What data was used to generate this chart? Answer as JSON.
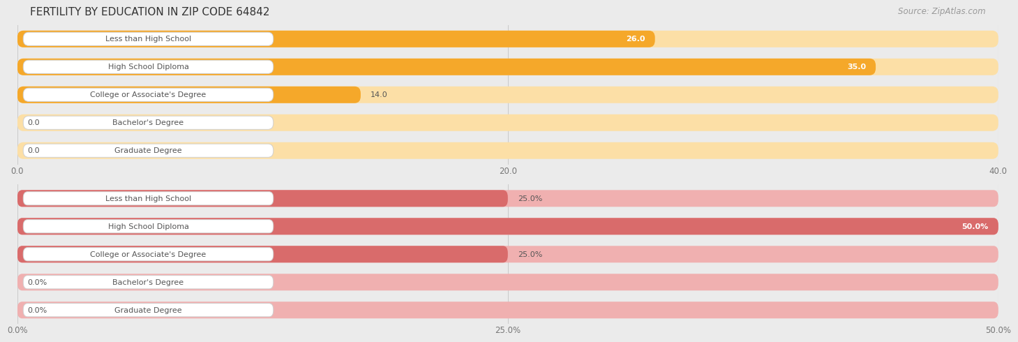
{
  "title": "FERTILITY BY EDUCATION IN ZIP CODE 64842",
  "source": "Source: ZipAtlas.com",
  "background_color": "#ebebeb",
  "top_chart": {
    "categories": [
      "Less than High School",
      "High School Diploma",
      "College or Associate's Degree",
      "Bachelor's Degree",
      "Graduate Degree"
    ],
    "values": [
      26.0,
      35.0,
      14.0,
      0.0,
      0.0
    ],
    "bar_color": "#f5a82a",
    "bar_bg_color": "#fcdfa6",
    "xlim": [
      0,
      40
    ],
    "xticks": [
      0.0,
      20.0,
      40.0
    ],
    "xtick_labels": [
      "0.0",
      "20.0",
      "40.0"
    ],
    "value_labels": [
      "26.0",
      "35.0",
      "14.0",
      "0.0",
      "0.0"
    ],
    "value_inside": [
      true,
      true,
      false,
      false,
      false
    ]
  },
  "bottom_chart": {
    "categories": [
      "Less than High School",
      "High School Diploma",
      "College or Associate's Degree",
      "Bachelor's Degree",
      "Graduate Degree"
    ],
    "values": [
      25.0,
      50.0,
      25.0,
      0.0,
      0.0
    ],
    "bar_color": "#d96b6b",
    "bar_bg_color": "#f0b0b0",
    "xlim": [
      0,
      50
    ],
    "xticks": [
      0.0,
      25.0,
      50.0
    ],
    "xtick_labels": [
      "0.0%",
      "25.0%",
      "50.0%"
    ],
    "value_labels": [
      "25.0%",
      "50.0%",
      "25.0%",
      "0.0%",
      "0.0%"
    ],
    "value_inside": [
      false,
      true,
      false,
      false,
      false
    ]
  },
  "label_box_color": "#ffffff",
  "label_text_color": "#555555",
  "label_fontsize": 8.0,
  "value_fontsize": 8.0,
  "title_fontsize": 11,
  "source_fontsize": 8.5
}
